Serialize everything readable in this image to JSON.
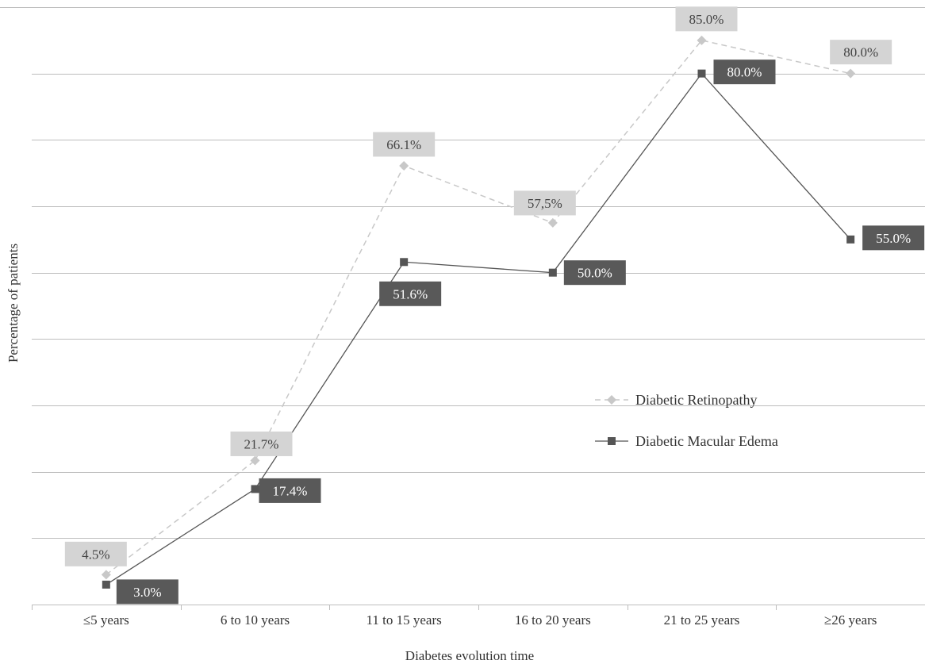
{
  "chart_data": {
    "type": "line",
    "xlabel": "Diabetes evolution time",
    "ylabel": "Percentage of patients",
    "ylim": [
      0,
      90
    ],
    "grid": true,
    "legend_position": "right-middle",
    "categories": [
      "≤5 years",
      "6 to 10 years",
      "11 to 15 years",
      "16 to 20 years",
      "21 to 25 years",
      "≥26 years"
    ],
    "series": [
      {
        "name": "Diabetic Retinopathy",
        "values": [
          4.5,
          21.7,
          66.1,
          57.5,
          85.0,
          80.0
        ],
        "labels": [
          "4.5%",
          "21.7%",
          "66.1%",
          "57,5%",
          "85.0%",
          "80.0%"
        ],
        "color": "#c8c8c8",
        "label_bg": "#d4d4d4",
        "label_color": "#444444",
        "marker": "diamond",
        "dash": true
      },
      {
        "name": "Diabetic Macular Edema",
        "values": [
          3.0,
          17.4,
          51.6,
          50.0,
          80.0,
          55.0
        ],
        "labels": [
          "3.0%",
          "17.4%",
          "51.6%",
          "50.0%",
          "80.0%",
          "55.0%"
        ],
        "color": "#555555",
        "label_bg": "#595959",
        "label_color": "#ffffff",
        "marker": "square",
        "dash": false
      }
    ]
  }
}
